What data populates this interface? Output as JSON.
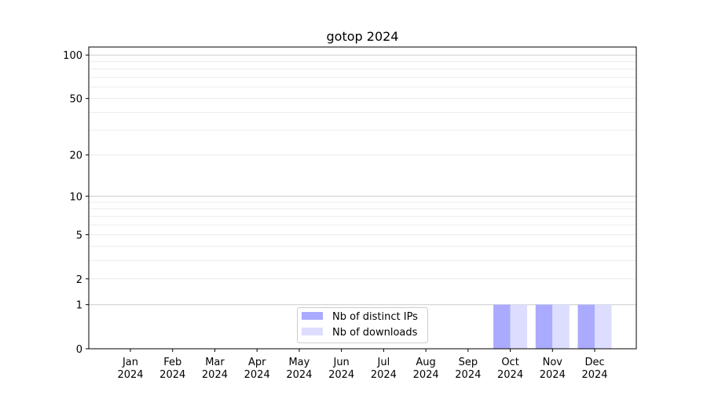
{
  "chart_data": {
    "type": "bar",
    "title": "gotop 2024",
    "xlabel": "",
    "ylabel": "",
    "categories": [
      "Jan\n2024",
      "Feb\n2024",
      "Mar\n2024",
      "Apr\n2024",
      "May\n2024",
      "Jun\n2024",
      "Jul\n2024",
      "Aug\n2024",
      "Sep\n2024",
      "Oct\n2024",
      "Nov\n2024",
      "Dec\n2024"
    ],
    "series": [
      {
        "name": "Nb of distinct IPs",
        "color": "#aaaaff",
        "values": [
          0,
          0,
          0,
          0,
          0,
          0,
          0,
          0,
          0,
          1,
          1,
          1
        ]
      },
      {
        "name": "Nb of downloads",
        "color": "#ddddff",
        "values": [
          0,
          0,
          0,
          0,
          0,
          0,
          0,
          0,
          0,
          1,
          1,
          1
        ]
      }
    ],
    "yscale": "log(1+y)",
    "ylim": [
      0,
      113.5
    ],
    "yticks": [
      0,
      1,
      2,
      5,
      10,
      20,
      50,
      100
    ],
    "ytick_labels": [
      "0",
      "1",
      "2",
      "5",
      "10",
      "20",
      "50",
      "100"
    ],
    "grid": "horizontal, major and minor",
    "legend_position": "lower-center"
  }
}
